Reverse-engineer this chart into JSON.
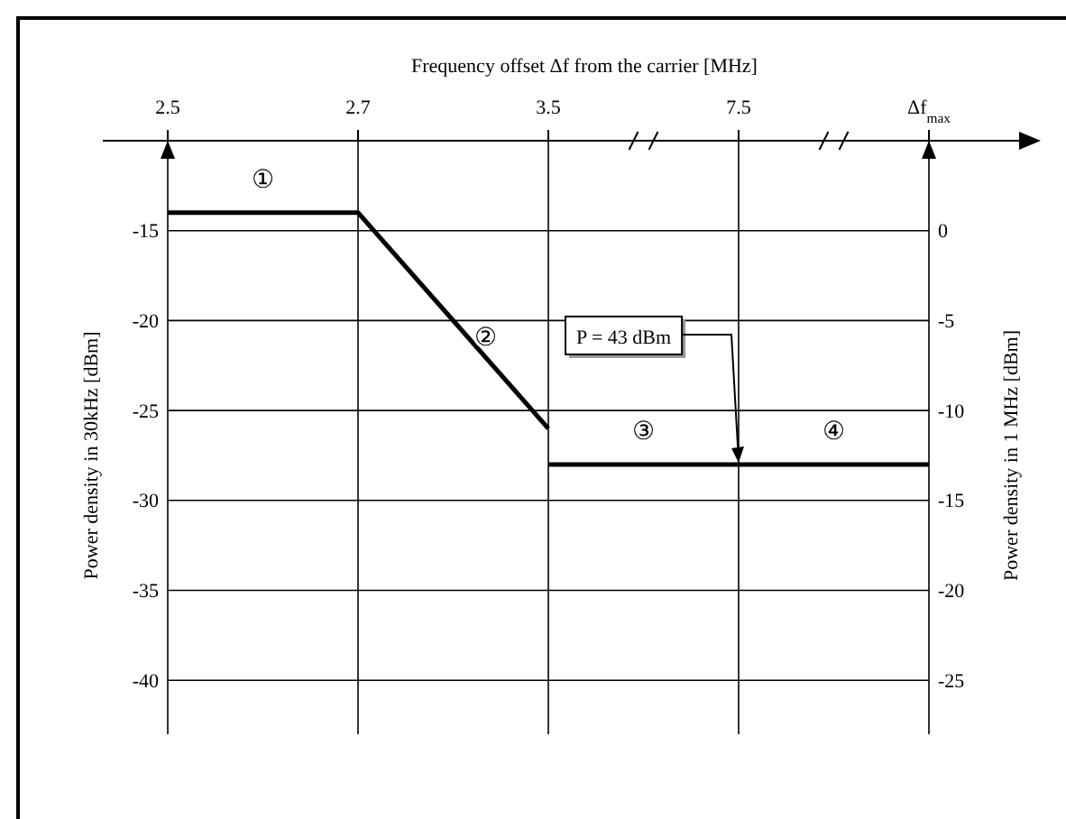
{
  "chart_data": {
    "type": "line",
    "xlabel": "Frequency offset Δf from the carrier [MHz]",
    "ylabel": "Power density in  30kHz [dBm]",
    "y2label": "Power density in 1 MHz [dBm]",
    "categories": [
      "2.5",
      "2.7",
      "3.5",
      "7.5",
      "Δf$_{max}$"
    ],
    "series": [
      {
        "color": "#000000",
        "values": [
          -14,
          -14,
          -26,
          null,
          null
        ]
      },
      {
        "color": "#000000",
        "values": [
          null,
          null,
          -28,
          -28,
          -28
        ]
      }
    ],
    "ylim": [
      -43,
      -10
    ],
    "yticks": [
      -15,
      -20,
      -25,
      -30,
      -35,
      -40
    ],
    "y2lim": [
      -28,
      5
    ],
    "y2ticks": [
      0,
      -5,
      -10,
      -15,
      -20,
      -25
    ],
    "grid": true,
    "marker": "none",
    "line_style": "solid",
    "annotations": [
      "①",
      "②",
      "③",
      "④",
      {
        "text": "P = 43 dBm",
        "x": "7.5",
        "y": -28
      }
    ]
  }
}
